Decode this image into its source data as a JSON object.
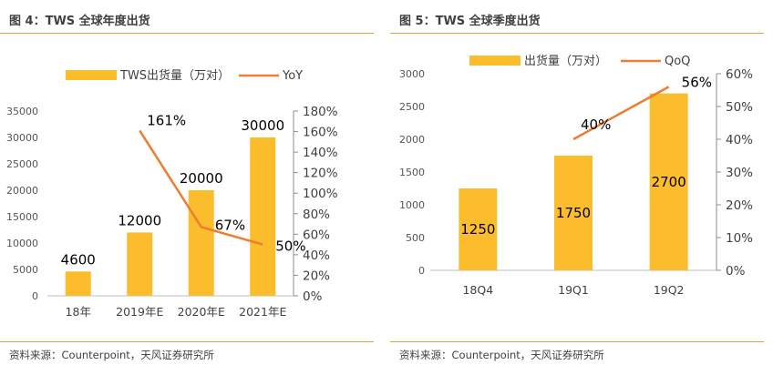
{
  "colors": {
    "bar": "#fbbd2c",
    "line": "#ed7d31",
    "rule": "#d9a441"
  },
  "left": {
    "title": "图 4：TWS 全球年度出货",
    "source": "资料来源：Counterpoint，天风证券研究所",
    "chart_data": {
      "type": "bar+line",
      "categories": [
        "18年",
        "2019年E",
        "2020年E",
        "2021年E"
      ],
      "series": [
        {
          "name": "TWS出货量（万对）",
          "type": "bar",
          "axis": "left",
          "values": [
            4600,
            12000,
            20000,
            30000
          ],
          "labels": [
            "4600",
            "12000",
            "20000",
            "30000"
          ]
        },
        {
          "name": "YoY",
          "type": "line",
          "axis": "right",
          "values": [
            null,
            161,
            67,
            50
          ],
          "labels": [
            "",
            "161%",
            "67%",
            "50%"
          ]
        }
      ],
      "y_left": {
        "min": 0,
        "max": 35000,
        "ticks": [
          "0",
          "5000",
          "10000",
          "15000",
          "20000",
          "25000",
          "30000",
          "35000"
        ]
      },
      "y_right": {
        "min": 0,
        "max": 180,
        "ticks": [
          "0%",
          "20%",
          "40%",
          "60%",
          "80%",
          "100%",
          "120%",
          "140%",
          "160%",
          "180%"
        ]
      },
      "legend": [
        "TWS出货量（万对）",
        "YoY"
      ]
    }
  },
  "right": {
    "title": "图 5：TWS 全球季度出货",
    "source": "资料来源：Counterpoint，天风证券研究所",
    "chart_data": {
      "type": "bar+line",
      "categories": [
        "18Q4",
        "19Q1",
        "19Q2"
      ],
      "series": [
        {
          "name": "出货量（万对）",
          "type": "bar",
          "axis": "left",
          "values": [
            1250,
            1750,
            2700
          ],
          "labels": [
            "1250",
            "1750",
            "2700"
          ]
        },
        {
          "name": "QoQ",
          "type": "line",
          "axis": "right",
          "values": [
            null,
            40,
            56
          ],
          "labels": [
            "",
            "40%",
            "56%"
          ]
        }
      ],
      "y_left": {
        "min": 0,
        "max": 3000,
        "ticks": [
          "0",
          "500",
          "1000",
          "1500",
          "2000",
          "2500",
          "3000"
        ]
      },
      "y_right": {
        "min": 0,
        "max": 60,
        "ticks": [
          "0%",
          "10%",
          "20%",
          "30%",
          "40%",
          "50%",
          "60%"
        ]
      },
      "legend": [
        "出货量（万对）",
        "QoQ"
      ]
    }
  }
}
